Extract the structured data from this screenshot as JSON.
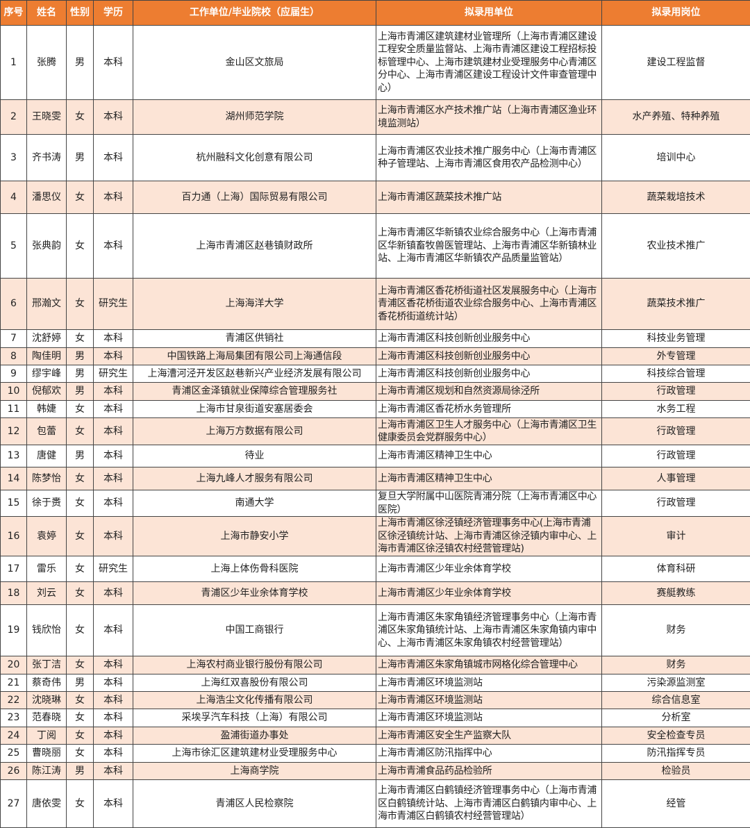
{
  "colors": {
    "header": "#ed7d31",
    "stripe": "#fce4d6"
  },
  "headers": [
    "序号",
    "姓名",
    "性别",
    "学历",
    "工作单位/毕业院校（应届生）",
    "拟录用单位",
    "拟录用岗位"
  ],
  "rows": [
    [
      "1",
      "张腾",
      "男",
      "本科",
      "金山区文旅局",
      "上海市青浦区建筑建材业管理所（上海市青浦区建设工程安全质量监督站、上海市青浦区建设工程招标投标管理中心、上海市建筑建材业受理服务中心青浦区分中心、上海市青浦区建设工程设计文件审查管理中心）",
      "建设工程监督"
    ],
    [
      "2",
      "王晓雯",
      "女",
      "本科",
      "湖州师范学院",
      "上海市青浦区水产技术推广站（上海市青浦区渔业环境监测站）",
      "水产养殖、特种养殖"
    ],
    [
      "3",
      "齐书涛",
      "男",
      "本科",
      "杭州融科文化创意有限公司",
      "上海市青浦区农业技术推广服务中心（上海市青浦区种子管理站、上海市青浦区食用农产品检测中心）",
      "培训中心"
    ],
    [
      "4",
      "潘思仪",
      "女",
      "本科",
      "百力通（上海）国际贸易有限公司",
      "上海市青浦区蔬菜技术推广站",
      "蔬菜栽培技术"
    ],
    [
      "5",
      "张典韵",
      "女",
      "本科",
      "上海市青浦区赵巷镇财政所",
      "上海市青浦区华新镇农业综合服务中心（上海市青浦区华新镇畜牧兽医管理站、上海市青浦区华新镇林业站、上海市青浦区华新镇农产品质量监管站）",
      "农业技术推广"
    ],
    [
      "6",
      "邢瀚文",
      "女",
      "研究生",
      "上海海洋大学",
      "上海市青浦区香花桥街道社区发展服务中心（上海市青浦区香花桥街道农业综合服务中心、上海市青浦区香花桥街道统计站）",
      "蔬菜技术推广"
    ],
    [
      "7",
      "沈舒婷",
      "女",
      "本科",
      "青浦区供销社",
      "上海市青浦区科技创新创业服务中心",
      "科技业务管理"
    ],
    [
      "8",
      "陶佳明",
      "男",
      "本科",
      "中国铁路上海局集团有限公司上海通信段",
      "上海市青浦区科技创新创业服务中心",
      "外专管理"
    ],
    [
      "9",
      "缪宇峰",
      "男",
      "研究生",
      "上海漕河泾开发区赵巷新兴产业经济发展有限公司",
      "上海市青浦区科技创新创业服务中心",
      "科技综合管理"
    ],
    [
      "10",
      "倪郁欢",
      "男",
      "本科",
      "青浦区金泽镇就业保障综合管理服务社",
      "上海市青浦区规划和自然资源局徐泾所",
      "行政管理"
    ],
    [
      "11",
      "韩婕",
      "女",
      "本科",
      "上海市甘泉街道安塞居委会",
      "上海市青浦区香花桥水务管理所",
      "水务工程"
    ],
    [
      "12",
      "包蕾",
      "女",
      "本科",
      "上海万方数据有限公司",
      "上海市青浦区卫生人才服务中心（上海市青浦区卫生健康委员会党群服务中心）",
      "行政管理"
    ],
    [
      "13",
      "唐健",
      "男",
      "本科",
      "待业",
      "上海市青浦区精神卫生中心",
      "行政管理"
    ],
    [
      "14",
      "陈梦怡",
      "女",
      "本科",
      "上海九峰人才服务有限公司",
      "上海市青浦区精神卫生中心",
      "人事管理"
    ],
    [
      "15",
      "徐于赉",
      "女",
      "本科",
      "南通大学",
      "复旦大学附属中山医院青浦分院（上海市青浦区中心医院）",
      "行政管理"
    ],
    [
      "16",
      "袁婷",
      "女",
      "本科",
      "上海市静安小学",
      "上海市青浦区徐泾镇经济管理事务中心(上海市青浦区徐泾镇统计站、上海市青浦区徐泾镇内审中心、上海市青浦区徐泾镇农村经营管理站)",
      "审计"
    ],
    [
      "17",
      "雷乐",
      "女",
      "研究生",
      "上海上体伤骨科医院",
      "上海市青浦区少年业余体育学校",
      "体育科研"
    ],
    [
      "18",
      "刘云",
      "女",
      "本科",
      "青浦区少年业余体育学校",
      "上海市青浦区少年业余体育学校",
      "赛艇教练"
    ],
    [
      "19",
      "钱欣怡",
      "女",
      "本科",
      "中国工商银行",
      "上海市青浦区朱家角镇经济管理事务中心（上海市青浦区朱家角镇统计站、上海市青浦区朱家角镇内审中心、上海市青浦区朱家角镇农村经营管理站）",
      "财务"
    ],
    [
      "20",
      "张丁洁",
      "女",
      "本科",
      "上海农村商业银行股份有限公司",
      "上海市青浦区朱家角镇城市网格化综合管理中心",
      "财务"
    ],
    [
      "21",
      "蔡奇伟",
      "男",
      "本科",
      "上海红双喜股份有限公司",
      "上海市青浦区环境监测站",
      "污染源监测室"
    ],
    [
      "22",
      "沈晓琳",
      "女",
      "本科",
      "上海浩尘文化传播有限公司",
      "上海市青浦区环境监测站",
      "综合信息室"
    ],
    [
      "23",
      "范春晓",
      "女",
      "本科",
      "采埃孚汽车科技（上海）有限公司",
      "上海市青浦区环境监测站",
      "分析室"
    ],
    [
      "24",
      "丁阅",
      "女",
      "本科",
      "盈浦街道办事处",
      "上海市青浦区安全生产监察大队",
      "安全检查专员"
    ],
    [
      "25",
      "曹晓丽",
      "女",
      "本科",
      "上海市徐汇区建筑建材业受理服务中心",
      "上海市青浦区防汛指挥中心",
      "防汛指挥专员"
    ],
    [
      "26",
      "陈江涛",
      "男",
      "本科",
      "上海商学院",
      "上海市青浦食品药品检验所",
      "检验员"
    ],
    [
      "27",
      "唐依雯",
      "女",
      "本科",
      "青浦区人民检察院",
      "上海市青浦区白鹤镇经济管理事务中心（上海市青浦区白鹤镇统计站、上海市青浦区白鹤镇内审中心、上海市青浦区白鹤镇农村经营管理站）",
      "经管"
    ]
  ]
}
